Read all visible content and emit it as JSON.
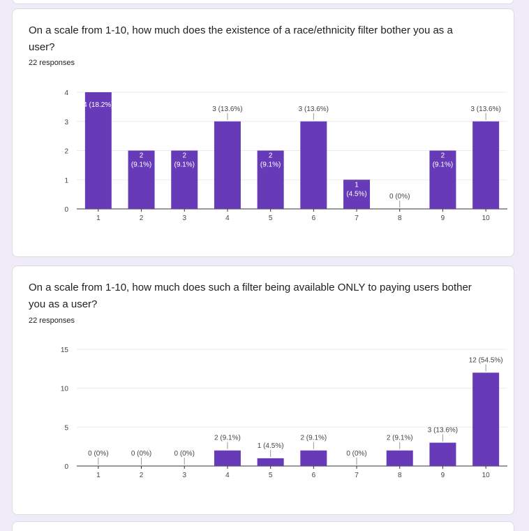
{
  "questions": [
    {
      "title": "On a scale from 1-10, how much does the existence of a race/ethnicity filter bother you as a user?",
      "responses": "22 responses"
    },
    {
      "title": "On a scale from 1-10, how much does such a filter being available ONLY to paying users bother you as a user?",
      "responses": "22 responses"
    }
  ],
  "colors": {
    "bar": "#673ab7",
    "grid": "#ebebeb",
    "axis": "#333333",
    "label": "#444444"
  },
  "chart_data": [
    {
      "type": "bar",
      "categories": [
        "1",
        "2",
        "3",
        "4",
        "5",
        "6",
        "7",
        "8",
        "9",
        "10"
      ],
      "values": [
        4,
        2,
        2,
        3,
        2,
        3,
        1,
        0,
        2,
        3
      ],
      "data_labels": [
        "4 (18.2%)",
        "2 (9.1%)",
        "2 (9.1%)",
        "3 (13.6%)",
        "2 (9.1%)",
        "3 (13.6%)",
        "1 (4.5%)",
        "0 (0%)",
        "2 (9.1%)",
        "3 (13.6%)"
      ],
      "yticks": [
        0,
        1,
        2,
        3,
        4
      ],
      "ylim": [
        0,
        4
      ],
      "grid": true
    },
    {
      "type": "bar",
      "categories": [
        "1",
        "2",
        "3",
        "4",
        "5",
        "6",
        "7",
        "8",
        "9",
        "10"
      ],
      "values": [
        0,
        0,
        0,
        2,
        1,
        2,
        0,
        2,
        3,
        12
      ],
      "data_labels": [
        "0 (0%)",
        "0 (0%)",
        "0 (0%)",
        "2 (9.1%)",
        "1 (4.5%)",
        "2 (9.1%)",
        "0 (0%)",
        "2 (9.1%)",
        "3 (13.6%)",
        "12 (54.5%)"
      ],
      "yticks": [
        0,
        5,
        10,
        15
      ],
      "ylim": [
        0,
        15
      ],
      "grid": true
    }
  ]
}
